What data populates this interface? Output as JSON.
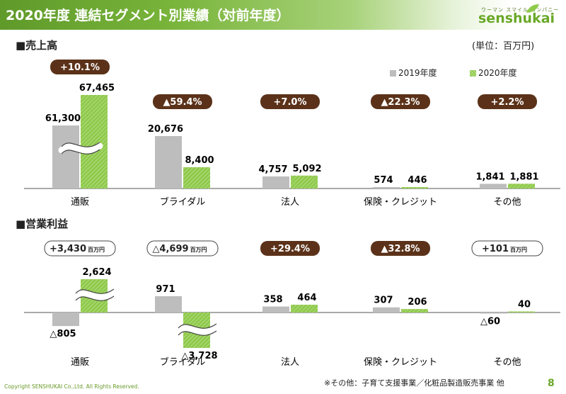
{
  "header": {
    "title": "2020年度 連結セグメント別業績（対前年度）",
    "brand_kana": "ウーマン スマイル カンパニー",
    "brand_name": "senshukai"
  },
  "unit_label": "(単位：百万円)",
  "legend": {
    "prev": "2019年度",
    "curr": "2020年度"
  },
  "colors": {
    "accent": "#78b43a",
    "prev_bar": "#bdbdbd",
    "curr_bar": "#8fca4b",
    "badge": "#5b3219"
  },
  "footer": {
    "note": "※その他：子育て支援事業／化粧品製造販売事業 他",
    "copyright": "Copyright SENSHUKAI Co.,Ltd. All Rights Reserved.",
    "page": "8"
  },
  "chart_data": [
    {
      "type": "bar",
      "title": "■売上高",
      "categories": [
        "通販",
        "ブライダル",
        "法人",
        "保険・クレジット",
        "その他"
      ],
      "series": [
        {
          "name": "2019年度",
          "values": [
            61300,
            20676,
            4757,
            574,
            1841
          ],
          "labels": [
            "61,300",
            "20,676",
            "4,757",
            "574",
            "1,841"
          ]
        },
        {
          "name": "2020年度",
          "values": [
            67465,
            8400,
            5092,
            446,
            1881
          ],
          "labels": [
            "67,465",
            "8,400",
            "5,092",
            "446",
            "1,881"
          ]
        }
      ],
      "changes": [
        "+10.1%",
        "▲59.4%",
        "+7.0%",
        "▲22.3%",
        "+2.2%"
      ],
      "axis_break": "通販"
    },
    {
      "type": "bar",
      "title": "■営業利益",
      "categories": [
        "通販",
        "ブライダル",
        "法人",
        "保険・クレジット",
        "その他"
      ],
      "series": [
        {
          "name": "2019年度",
          "values": [
            -805,
            971,
            358,
            307,
            -60
          ],
          "labels": [
            "△805",
            "971",
            "358",
            "307",
            "△60"
          ]
        },
        {
          "name": "2020年度",
          "values": [
            2624,
            -3728,
            464,
            206,
            40
          ],
          "labels": [
            "2,624",
            "△3,728",
            "464",
            "206",
            "40"
          ]
        }
      ],
      "changes": [
        "+3,430",
        "△4,699",
        "+29.4%",
        "▲32.8%",
        "+101"
      ],
      "change_units": [
        "百万円",
        "百万円",
        "",
        "",
        "百万円"
      ],
      "axis_break": "通販, ブライダル"
    }
  ]
}
